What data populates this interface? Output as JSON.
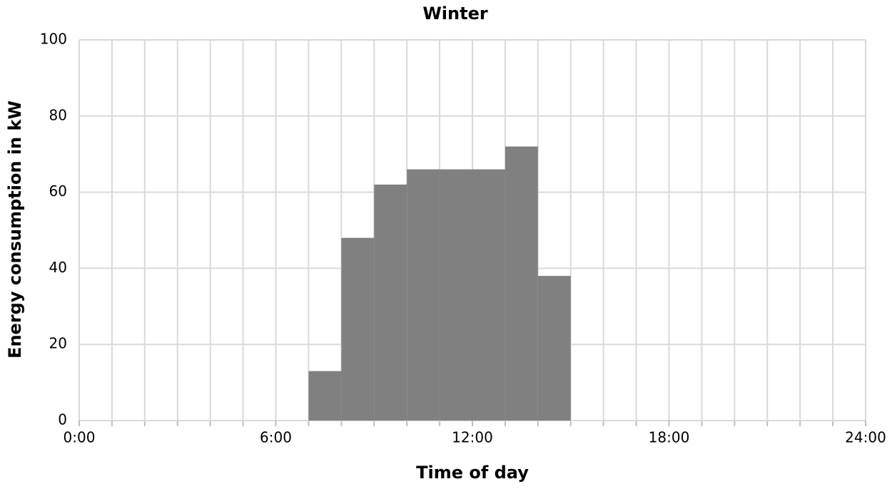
{
  "chart_data": {
    "type": "histogram",
    "title": "Winter",
    "xlabel": "Time of day",
    "ylabel": "Energy consumption in kW",
    "bins": [
      7,
      8,
      9,
      10,
      11,
      12,
      13,
      14,
      15
    ],
    "values": [
      13,
      48,
      62,
      66,
      66,
      66,
      72,
      38
    ],
    "color": "#808080",
    "xlim": [
      0,
      24
    ],
    "xticks": [
      {
        "value": 0,
        "label": "0:00"
      },
      {
        "value": 6,
        "label": "6:00"
      },
      {
        "value": 12,
        "label": "12:00"
      },
      {
        "value": 18,
        "label": "18:00"
      },
      {
        "value": 24,
        "label": "24:00"
      }
    ],
    "xminorticks": [
      0,
      1,
      2,
      3,
      4,
      5,
      6,
      7,
      8,
      9,
      10,
      11,
      12,
      13,
      14,
      15,
      16,
      17,
      18,
      19,
      20,
      21,
      22,
      23,
      24
    ],
    "ylim": [
      0,
      100
    ],
    "yticks": [
      0,
      20,
      40,
      60,
      80,
      100
    ],
    "grid": true
  }
}
